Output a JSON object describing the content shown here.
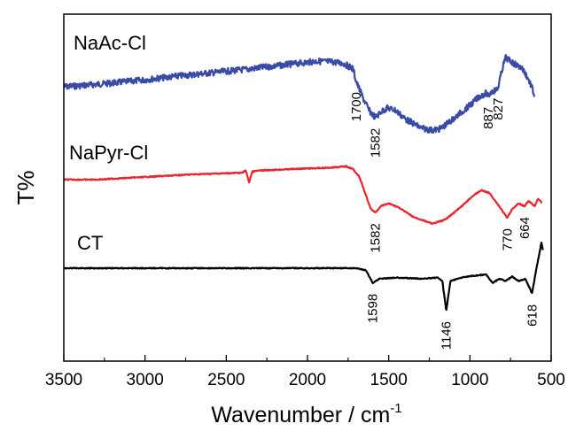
{
  "chart_data": {
    "type": "line",
    "xlabel": "Wavenumber / cm",
    "xlabel_sup": "-1",
    "ylabel": "T%",
    "xlim": [
      3500,
      500
    ],
    "x_reversed": true,
    "x_ticks": [
      3500,
      3000,
      2500,
      2000,
      1500,
      1000,
      500
    ],
    "y_ticks_shown": false,
    "grid": false,
    "legend": "none (series labels printed above each trace)",
    "series": [
      {
        "name": "NaAc-Cl",
        "color": "#3a4ba6",
        "points": [
          [
            3500,
            0.0
          ],
          [
            3400,
            0.02
          ],
          [
            3200,
            0.07
          ],
          [
            3000,
            0.13
          ],
          [
            2800,
            0.2
          ],
          [
            2600,
            0.26
          ],
          [
            2400,
            0.32
          ],
          [
            2200,
            0.39
          ],
          [
            2000,
            0.46
          ],
          [
            1950,
            0.48
          ],
          [
            1850,
            0.47
          ],
          [
            1780,
            0.44
          ],
          [
            1720,
            0.34
          ],
          [
            1700,
            0.1
          ],
          [
            1660,
            -0.2
          ],
          [
            1620,
            -0.45
          ],
          [
            1582,
            -0.58
          ],
          [
            1550,
            -0.48
          ],
          [
            1510,
            -0.4
          ],
          [
            1460,
            -0.44
          ],
          [
            1400,
            -0.6
          ],
          [
            1300,
            -0.78
          ],
          [
            1230,
            -0.82
          ],
          [
            1180,
            -0.79
          ],
          [
            1100,
            -0.6
          ],
          [
            1000,
            -0.35
          ],
          [
            940,
            -0.18
          ],
          [
            900,
            -0.12
          ],
          [
            887,
            -0.18
          ],
          [
            870,
            -0.1
          ],
          [
            830,
            -0.05
          ],
          [
            800,
            0.35
          ],
          [
            780,
            0.55
          ],
          [
            760,
            0.5
          ],
          [
            720,
            0.42
          ],
          [
            680,
            0.35
          ],
          [
            650,
            0.2
          ],
          [
            620,
            0.0
          ],
          [
            600,
            -0.2
          ]
        ],
        "annotations": [
          {
            "x": 1700,
            "label": "1700"
          },
          {
            "x": 1582,
            "label": "1582"
          },
          {
            "x": 887,
            "label": "887"
          },
          {
            "x": 827,
            "label": "827"
          }
        ]
      },
      {
        "name": "NaPyr-Cl",
        "color": "#e8262d",
        "points": [
          [
            3500,
            0.0
          ],
          [
            3300,
            0.0
          ],
          [
            3000,
            0.05
          ],
          [
            2700,
            0.1
          ],
          [
            2400,
            0.13
          ],
          [
            2380,
            0.18
          ],
          [
            2360,
            -0.05
          ],
          [
            2340,
            0.15
          ],
          [
            2300,
            0.17
          ],
          [
            2100,
            0.2
          ],
          [
            1900,
            0.22
          ],
          [
            1800,
            0.24
          ],
          [
            1760,
            0.25
          ],
          [
            1720,
            0.2
          ],
          [
            1680,
            0.05
          ],
          [
            1640,
            -0.3
          ],
          [
            1610,
            -0.55
          ],
          [
            1582,
            -0.62
          ],
          [
            1550,
            -0.5
          ],
          [
            1500,
            -0.45
          ],
          [
            1440,
            -0.52
          ],
          [
            1350,
            -0.7
          ],
          [
            1230,
            -0.83
          ],
          [
            1150,
            -0.75
          ],
          [
            1050,
            -0.5
          ],
          [
            980,
            -0.3
          ],
          [
            930,
            -0.2
          ],
          [
            880,
            -0.25
          ],
          [
            820,
            -0.5
          ],
          [
            770,
            -0.72
          ],
          [
            740,
            -0.55
          ],
          [
            700,
            -0.45
          ],
          [
            664,
            -0.5
          ],
          [
            640,
            -0.4
          ],
          [
            600,
            -0.5
          ],
          [
            580,
            -0.35
          ],
          [
            555,
            -0.45
          ]
        ],
        "annotations": [
          {
            "x": 1582,
            "label": "1582"
          },
          {
            "x": 770,
            "label": "770"
          },
          {
            "x": 664,
            "label": "664"
          }
        ]
      },
      {
        "name": "CT",
        "color": "#000000",
        "points": [
          [
            3500,
            0.0
          ],
          [
            3200,
            0.0
          ],
          [
            2900,
            0.0
          ],
          [
            2600,
            0.0
          ],
          [
            2300,
            0.0
          ],
          [
            2000,
            0.0
          ],
          [
            1800,
            0.0
          ],
          [
            1700,
            0.0
          ],
          [
            1640,
            -0.05
          ],
          [
            1598,
            -0.35
          ],
          [
            1560,
            -0.25
          ],
          [
            1450,
            -0.22
          ],
          [
            1300,
            -0.25
          ],
          [
            1200,
            -0.22
          ],
          [
            1170,
            -0.3
          ],
          [
            1146,
            -1.0
          ],
          [
            1120,
            -0.3
          ],
          [
            1050,
            -0.22
          ],
          [
            980,
            -0.18
          ],
          [
            900,
            -0.15
          ],
          [
            860,
            -0.35
          ],
          [
            820,
            -0.25
          ],
          [
            780,
            -0.3
          ],
          [
            740,
            -0.2
          ],
          [
            700,
            -0.3
          ],
          [
            660,
            -0.25
          ],
          [
            640,
            -0.4
          ],
          [
            618,
            -0.6
          ],
          [
            600,
            -0.2
          ],
          [
            580,
            0.2
          ],
          [
            560,
            0.6
          ],
          [
            550,
            0.4
          ]
        ],
        "annotations": [
          {
            "x": 1598,
            "label": "1598"
          },
          {
            "x": 1146,
            "label": "1146"
          },
          {
            "x": 618,
            "label": "618"
          }
        ]
      }
    ]
  }
}
